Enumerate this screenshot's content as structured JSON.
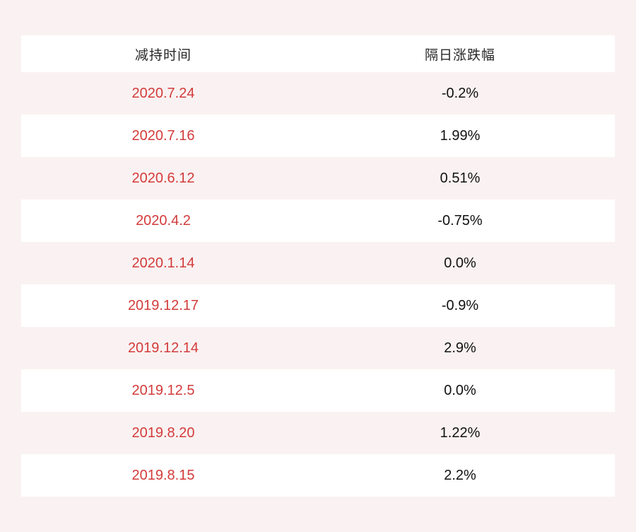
{
  "page": {
    "background_color": "#faf2f2",
    "row_alt_color": "#ffffff",
    "date_text_color": "#d33b3b",
    "value_text_color": "#111111"
  },
  "table": {
    "headers": {
      "col1": "减持时间",
      "col2": "隔日涨跌幅"
    },
    "rows": [
      {
        "date": "2020.7.24",
        "change": "-0.2%"
      },
      {
        "date": "2020.7.16",
        "change": "1.99%"
      },
      {
        "date": "2020.6.12",
        "change": "0.51%"
      },
      {
        "date": "2020.4.2",
        "change": "-0.75%"
      },
      {
        "date": "2020.1.14",
        "change": "0.0%"
      },
      {
        "date": "2019.12.17",
        "change": "-0.9%"
      },
      {
        "date": "2019.12.14",
        "change": "2.9%"
      },
      {
        "date": "2019.12.5",
        "change": "0.0%"
      },
      {
        "date": "2019.8.20",
        "change": "1.22%"
      },
      {
        "date": "2019.8.15",
        "change": "2.2%"
      }
    ]
  },
  "chart_data": {
    "type": "table",
    "title": "",
    "columns": [
      "减持时间",
      "隔日涨跌幅"
    ],
    "rows": [
      [
        "2020.7.24",
        "-0.2%"
      ],
      [
        "2020.7.16",
        "1.99%"
      ],
      [
        "2020.6.12",
        "0.51%"
      ],
      [
        "2020.4.2",
        "-0.75%"
      ],
      [
        "2020.1.14",
        "0.0%"
      ],
      [
        "2019.12.17",
        "-0.9%"
      ],
      [
        "2019.12.14",
        "2.9%"
      ],
      [
        "2019.12.5",
        "0.0%"
      ],
      [
        "2019.8.20",
        "1.22%"
      ],
      [
        "2019.8.15",
        "2.2%"
      ]
    ],
    "numeric_changes_pct": [
      -0.2,
      1.99,
      0.51,
      -0.75,
      0.0,
      -0.9,
      2.9,
      0.0,
      1.22,
      2.2
    ],
    "layout_hints": {
      "grid": false,
      "zebra_striping": true,
      "header_background": "#ffffff",
      "stripe_colors": [
        "#faf2f2",
        "#ffffff"
      ]
    }
  }
}
